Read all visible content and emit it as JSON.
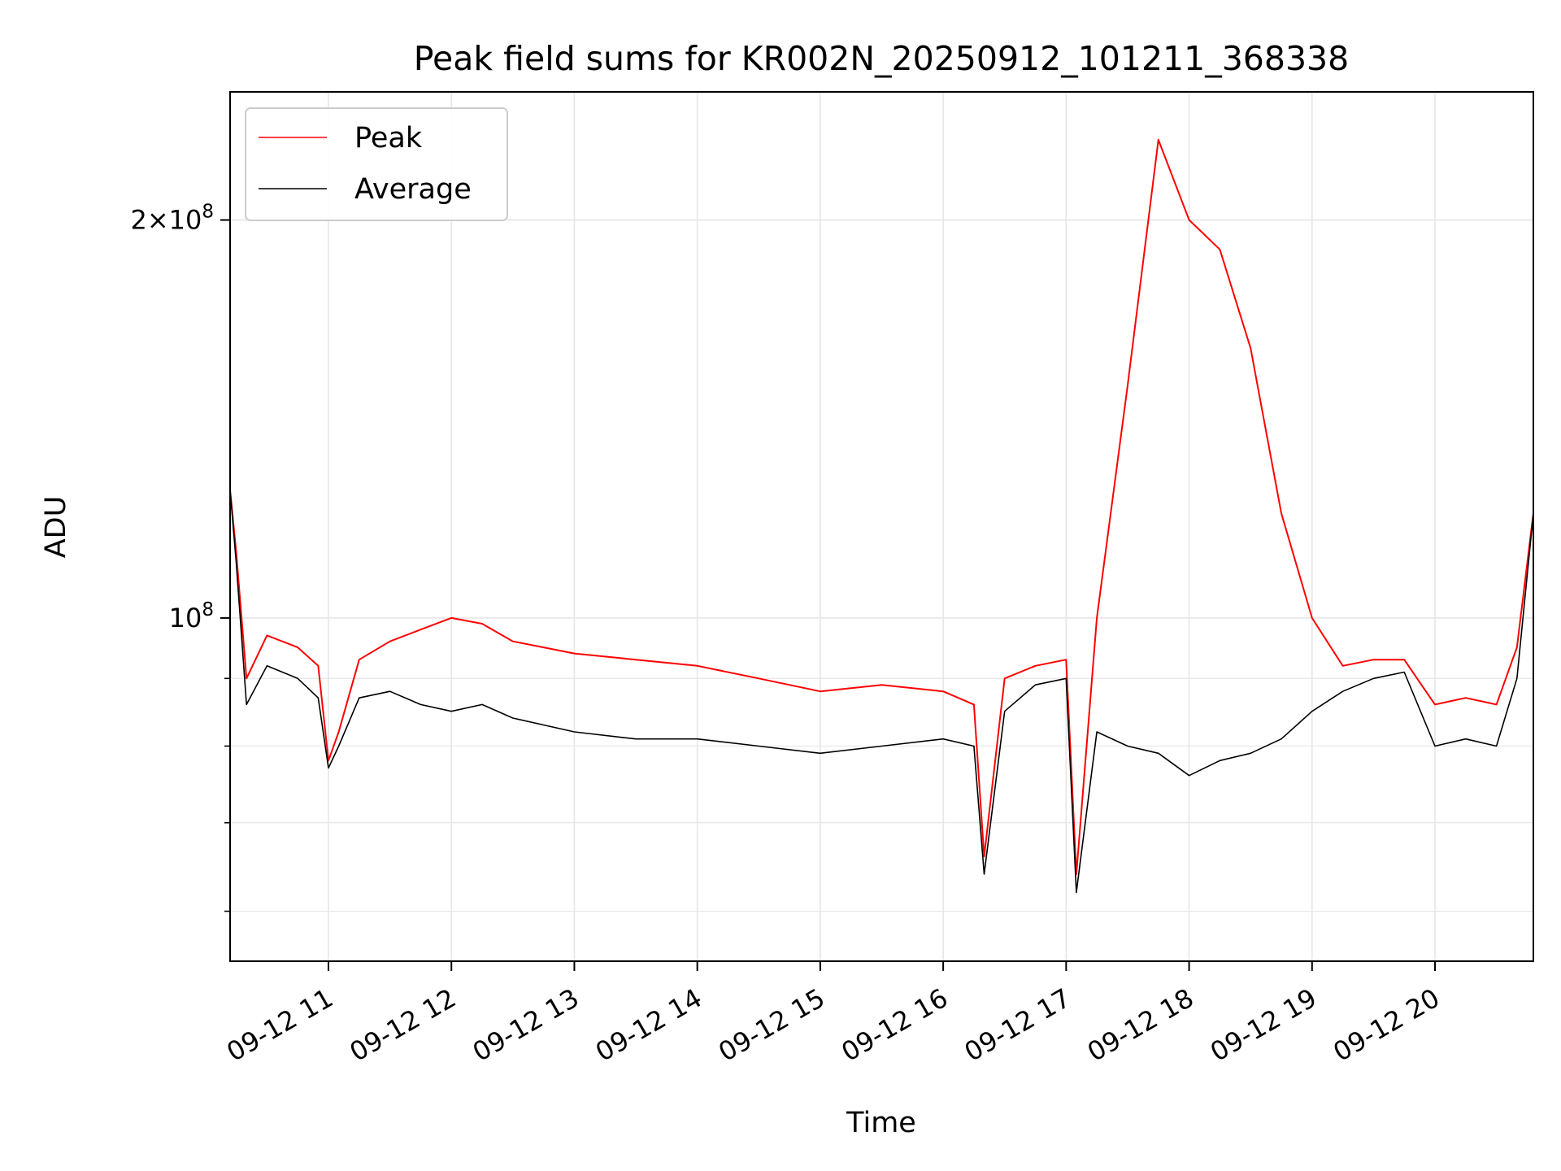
{
  "chart_data": {
    "type": "line",
    "title": "Peak field sums for KR002N_20250912_101211_368338",
    "xlabel": "Time",
    "ylabel": "ADU",
    "yscale": "log",
    "ylim": [
      55000000,
      250000000
    ],
    "xlim": [
      "09-12 10:12",
      "09-12 20:48"
    ],
    "grid": true,
    "legend": "top-left",
    "x_ticks": [
      "09-12 11",
      "09-12 12",
      "09-12 13",
      "09-12 14",
      "09-12 15",
      "09-12 16",
      "09-12 17",
      "09-12 18",
      "09-12 19",
      "09-12 20"
    ],
    "y_ticks": [
      {
        "value": 100000000,
        "mantissa": "",
        "base": "10",
        "exp": "8"
      },
      {
        "value": 200000000,
        "mantissa": "2×",
        "base": "10",
        "exp": "8"
      }
    ],
    "x": [
      "09-12 10:12",
      "09-12 10:15",
      "09-12 10:20",
      "09-12 10:30",
      "09-12 10:45",
      "09-12 10:55",
      "09-12 11:00",
      "09-12 11:05",
      "09-12 11:15",
      "09-12 11:30",
      "09-12 11:45",
      "09-12 12:00",
      "09-12 12:15",
      "09-12 12:30",
      "09-12 12:45",
      "09-12 13:00",
      "09-12 13:30",
      "09-12 14:00",
      "09-12 14:30",
      "09-12 15:00",
      "09-12 15:30",
      "09-12 16:00",
      "09-12 16:15",
      "09-12 16:20",
      "09-12 16:30",
      "09-12 16:45",
      "09-12 17:00",
      "09-12 17:05",
      "09-12 17:15",
      "09-12 17:30",
      "09-12 17:45",
      "09-12 18:00",
      "09-12 18:15",
      "09-12 18:30",
      "09-12 18:45",
      "09-12 19:00",
      "09-12 19:15",
      "09-12 19:30",
      "09-12 19:45",
      "09-12 20:00",
      "09-12 20:15",
      "09-12 20:30",
      "09-12 20:40",
      "09-12 20:48"
    ],
    "series": [
      {
        "name": "Peak",
        "color": "#ff0000",
        "values": [
          125000000,
          112000000,
          90000000,
          97000000,
          95000000,
          92000000,
          78000000,
          82000000,
          93000000,
          96000000,
          98000000,
          100000000,
          99000000,
          96000000,
          95000000,
          94000000,
          93000000,
          92000000,
          90000000,
          88000000,
          89000000,
          88000000,
          86000000,
          66000000,
          90000000,
          92000000,
          93000000,
          64000000,
          100000000,
          150000000,
          230000000,
          200000000,
          190000000,
          160000000,
          120000000,
          100000000,
          92000000,
          93000000,
          93000000,
          86000000,
          87000000,
          86000000,
          95000000,
          120000000
        ]
      },
      {
        "name": "Average",
        "color": "#000000",
        "values": [
          125000000,
          110000000,
          86000000,
          92000000,
          90000000,
          87000000,
          77000000,
          80000000,
          87000000,
          88000000,
          86000000,
          85000000,
          86000000,
          84000000,
          83000000,
          82000000,
          81000000,
          81000000,
          80000000,
          79000000,
          80000000,
          81000000,
          80000000,
          64000000,
          85000000,
          89000000,
          90000000,
          62000000,
          82000000,
          80000000,
          79000000,
          76000000,
          78000000,
          79000000,
          81000000,
          85000000,
          88000000,
          90000000,
          91000000,
          80000000,
          81000000,
          80000000,
          90000000,
          120000000
        ]
      }
    ]
  }
}
